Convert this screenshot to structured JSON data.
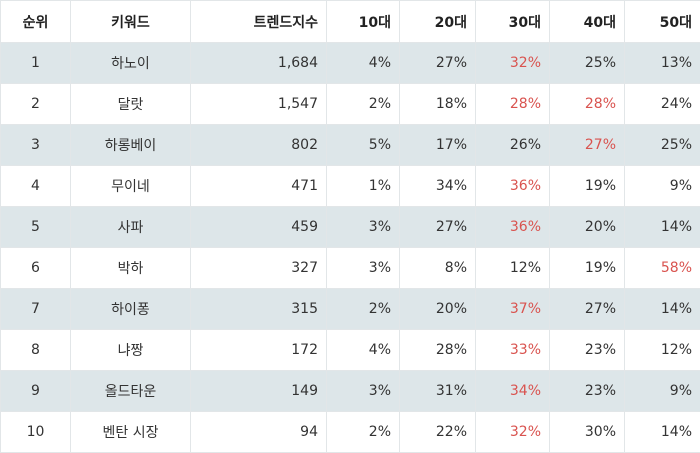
{
  "headers": [
    "순위",
    "키워드",
    "트렌드지수",
    "10대",
    "20대",
    "30대",
    "40대",
    "50대"
  ],
  "highlight_color": "#d9534f",
  "row_stripe_color": "#dde6e9",
  "rows": [
    {
      "rank": "1",
      "keyword": "하노이",
      "index": "1,684",
      "a10": "4%",
      "a20": "27%",
      "a30": "32%",
      "a40": "25%",
      "a50": "13%",
      "highlight": [
        "a30"
      ]
    },
    {
      "rank": "2",
      "keyword": "달랏",
      "index": "1,547",
      "a10": "2%",
      "a20": "18%",
      "a30": "28%",
      "a40": "28%",
      "a50": "24%",
      "highlight": [
        "a30",
        "a40"
      ]
    },
    {
      "rank": "3",
      "keyword": "하롱베이",
      "index": "802",
      "a10": "5%",
      "a20": "17%",
      "a30": "26%",
      "a40": "27%",
      "a50": "25%",
      "highlight": [
        "a40"
      ]
    },
    {
      "rank": "4",
      "keyword": "무이네",
      "index": "471",
      "a10": "1%",
      "a20": "34%",
      "a30": "36%",
      "a40": "19%",
      "a50": "9%",
      "highlight": [
        "a30"
      ]
    },
    {
      "rank": "5",
      "keyword": "사파",
      "index": "459",
      "a10": "3%",
      "a20": "27%",
      "a30": "36%",
      "a40": "20%",
      "a50": "14%",
      "highlight": [
        "a30"
      ]
    },
    {
      "rank": "6",
      "keyword": "박하",
      "index": "327",
      "a10": "3%",
      "a20": "8%",
      "a30": "12%",
      "a40": "19%",
      "a50": "58%",
      "highlight": [
        "a50"
      ]
    },
    {
      "rank": "7",
      "keyword": "하이퐁",
      "index": "315",
      "a10": "2%",
      "a20": "20%",
      "a30": "37%",
      "a40": "27%",
      "a50": "14%",
      "highlight": [
        "a30"
      ]
    },
    {
      "rank": "8",
      "keyword": "냐짱",
      "index": "172",
      "a10": "4%",
      "a20": "28%",
      "a30": "33%",
      "a40": "23%",
      "a50": "12%",
      "highlight": [
        "a30"
      ]
    },
    {
      "rank": "9",
      "keyword": "올드타운",
      "index": "149",
      "a10": "3%",
      "a20": "31%",
      "a30": "34%",
      "a40": "23%",
      "a50": "9%",
      "highlight": [
        "a30"
      ]
    },
    {
      "rank": "10",
      "keyword": "벤탄 시장",
      "index": "94",
      "a10": "2%",
      "a20": "22%",
      "a30": "32%",
      "a40": "30%",
      "a50": "14%",
      "highlight": [
        "a30"
      ]
    }
  ]
}
